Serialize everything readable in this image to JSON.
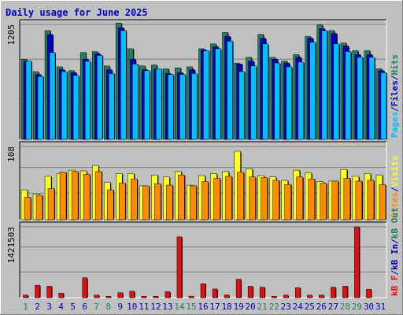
{
  "chart_data": {
    "type": "bar",
    "title": "Daily usage for June 2025",
    "days": [
      "1",
      "2",
      "3",
      "4",
      "5",
      "6",
      "7",
      "8",
      "9",
      "10",
      "11",
      "12",
      "13",
      "14",
      "15",
      "16",
      "17",
      "18",
      "19",
      "20",
      "21",
      "22",
      "23",
      "24",
      "25",
      "26",
      "27",
      "28",
      "29",
      "30",
      "31"
    ],
    "weekend_days": [
      "1",
      "7",
      "8",
      "14",
      "15",
      "21",
      "22",
      "28",
      "29"
    ],
    "panels": [
      {
        "id": "hits-files-pages",
        "max_label": "1205",
        "max": 1205,
        "series": [
          {
            "name": "Hits",
            "color": "#1f7f5f",
            "values": [
              840,
              710,
              1140,
              760,
              720,
              910,
              920,
              770,
              1220,
              950,
              770,
              780,
              740,
              750,
              760,
              950,
              1000,
              1120,
              800,
              860,
              1100,
              860,
              820,
              890,
              1080,
              1200,
              1140,
              1010,
              930,
              930,
              740
            ]
          },
          {
            "name": "Files",
            "color": "#0000c0",
            "values": [
              820,
              680,
              1100,
              730,
              700,
              840,
              900,
              730,
              1170,
              840,
              730,
              740,
              690,
              700,
              730,
              940,
              970,
              1080,
              790,
              820,
              1060,
              840,
              800,
              860,
              1060,
              1160,
              1110,
              980,
              890,
              890,
              720
            ]
          },
          {
            "name": "Pages",
            "color": "#00bfff",
            "values": [
              820,
              660,
              910,
              710,
              670,
              820,
              880,
              690,
              1140,
              790,
              720,
              740,
              680,
              680,
              690,
              930,
              950,
              1030,
              710,
              770,
              1000,
              800,
              760,
              810,
              1020,
              1140,
              1000,
              920,
              860,
              860,
              700
            ]
          }
        ]
      },
      {
        "id": "visits-sites",
        "max_label": "108",
        "max": 108,
        "series": [
          {
            "name": "Visits",
            "color": "#ffff20",
            "values": [
              44,
              38,
              64,
              68,
              73,
              72,
              80,
              55,
              68,
              68,
              50,
              66,
              63,
              71,
              51,
              65,
              68,
              71,
              101,
              75,
              65,
              63,
              58,
              73,
              69,
              56,
              57,
              74,
              64,
              68,
              66
            ]
          },
          {
            "name": "Sites",
            "color": "#ff8c00",
            "values": [
              33,
              36,
              46,
              70,
              71,
              67,
              71,
              44,
              54,
              60,
              50,
              53,
              51,
              66,
              50,
              56,
              61,
              64,
              70,
              63,
              62,
              58,
              52,
              63,
              60,
              54,
              57,
              61,
              57,
              58,
              52
            ]
          }
        ]
      },
      {
        "id": "kbin-kbout-kbf",
        "max_label": "1421503",
        "max": 1421503,
        "series": [
          {
            "name": "kB In",
            "color": "#0000c0",
            "values": [
              0,
              0,
              0,
              0,
              0,
              0,
              0,
              0,
              0,
              0,
              0,
              0,
              0,
              0,
              0,
              0,
              0,
              0,
              0,
              0,
              0,
              0,
              0,
              0,
              0,
              0,
              0,
              0,
              0,
              0,
              0
            ]
          },
          {
            "name": "kB Out",
            "color": "#1f7f5f",
            "values": [
              0,
              0,
              0,
              0,
              0,
              0,
              0,
              0,
              0,
              0,
              0,
              0,
              0,
              0,
              0,
              0,
              0,
              0,
              0,
              0,
              0,
              0,
              0,
              0,
              0,
              0,
              0,
              0,
              0,
              0,
              0
            ]
          },
          {
            "name": "kB F",
            "color": "#e01010",
            "values": [
              52000,
              250000,
              230000,
              90000,
              0,
              400000,
              52000,
              28000,
              100000,
              130000,
              28000,
              28000,
              120000,
              1220000,
              30000,
              280000,
              175000,
              55000,
              370000,
              230000,
              210000,
              28000,
              52000,
              200000,
              52000,
              52000,
              210000,
              230000,
              1421503,
              170000,
              0
            ]
          }
        ]
      }
    ],
    "legend_groups": [
      [
        {
          "text": "Pages",
          "color": "#00bfff"
        },
        {
          "text": "/",
          "color": "#0000c0"
        },
        {
          "text": "Files",
          "color": "#0000c0"
        },
        {
          "text": "/",
          "color": "#0000c0"
        },
        {
          "text": "Hits",
          "color": "#1f7f5f"
        }
      ],
      [
        {
          "text": "Sites",
          "color": "#ff8c00"
        },
        {
          "text": "/",
          "color": "#0000c0"
        },
        {
          "text": "Visits",
          "color": "#ffff20"
        }
      ],
      [
        {
          "text": "kB F",
          "color": "#e01010"
        },
        {
          "text": "/",
          "color": "#0000c0"
        },
        {
          "text": "kB In",
          "color": "#0000c0"
        },
        {
          "text": "/",
          "color": "#0000c0"
        },
        {
          "text": "kB Out",
          "color": "#1f7f5f"
        }
      ]
    ],
    "colors": {
      "background": "#c0c0c0",
      "plot_background": "#c0c0c0",
      "title": "#0000c0",
      "weekday_label": "#0000c0",
      "weekend_label": "#1f7f5f",
      "axis_label": "#000000",
      "grid": "#808080"
    }
  }
}
